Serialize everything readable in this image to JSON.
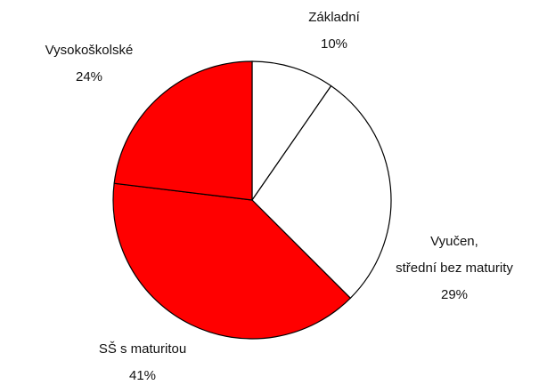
{
  "chart_data": {
    "type": "pie",
    "categories": [
      "Základní",
      "Vyučen,\nstřední bez maturity",
      "SŠ s maturitou",
      "Vysokoškolské"
    ],
    "values": [
      10,
      29,
      41,
      24
    ],
    "value_labels": [
      "10%",
      "29%",
      "41%",
      "24%"
    ],
    "colors": [
      "#ffffff",
      "#ffffff",
      "#ff0000",
      "#ff0000"
    ]
  }
}
